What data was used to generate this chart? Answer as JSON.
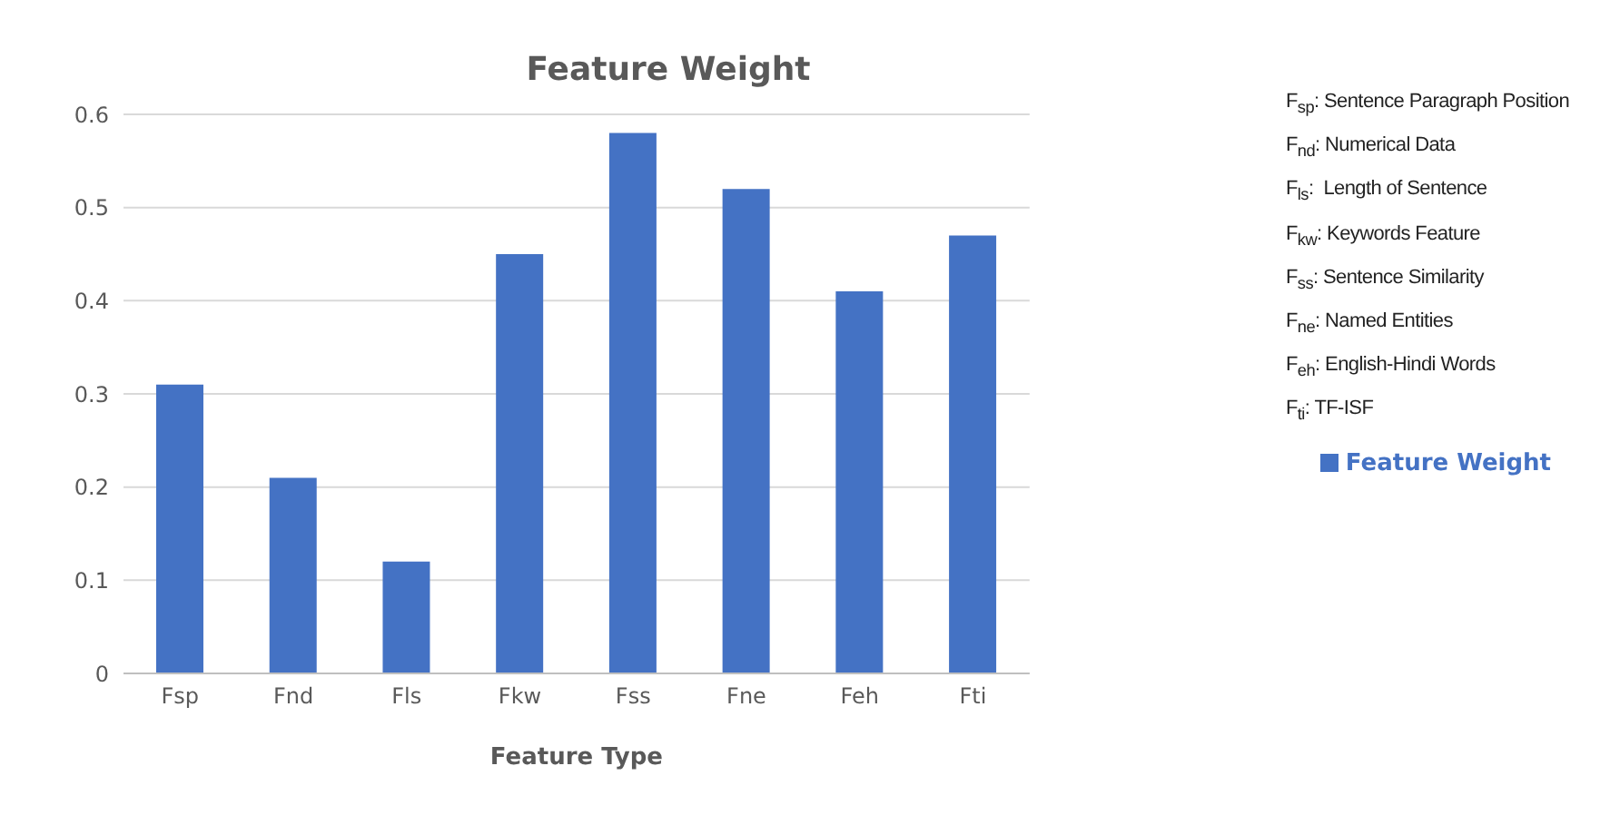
{
  "chart_data": {
    "type": "bar",
    "title": "Feature Weight",
    "xlabel": "Feature Type",
    "categories": [
      "Fsp",
      "Fnd",
      "Fls",
      "Fkw",
      "Fss",
      "Fne",
      "Feh",
      "Fti"
    ],
    "series": [
      {
        "name": "Feature Weight",
        "color": "#4472c4",
        "values": [
          0.31,
          0.21,
          0.12,
          0.45,
          0.58,
          0.52,
          0.41,
          0.47
        ]
      }
    ],
    "ylim": [
      0,
      0.6
    ],
    "yticks": [
      {
        "value": 0,
        "label": "0"
      },
      0.1,
      0.2,
      0.3,
      0.4,
      0.5,
      0.6
    ],
    "grid": "y",
    "legend": "right",
    "annotations": [
      "F$_{sp}$: Sentence Paragraph Position",
      "F$_{nd}$: Numerical Data",
      "F$_{ls}$:  Length of Sentence",
      "F$_{kw}$: Keywords Feature",
      "F$_{ss}$: Sentence Similarity",
      "F$_{ne}$: Named Entities",
      "F$_{eh}$: English-Hindi Words",
      "F$_{ti}$: TF-ISF"
    ]
  }
}
